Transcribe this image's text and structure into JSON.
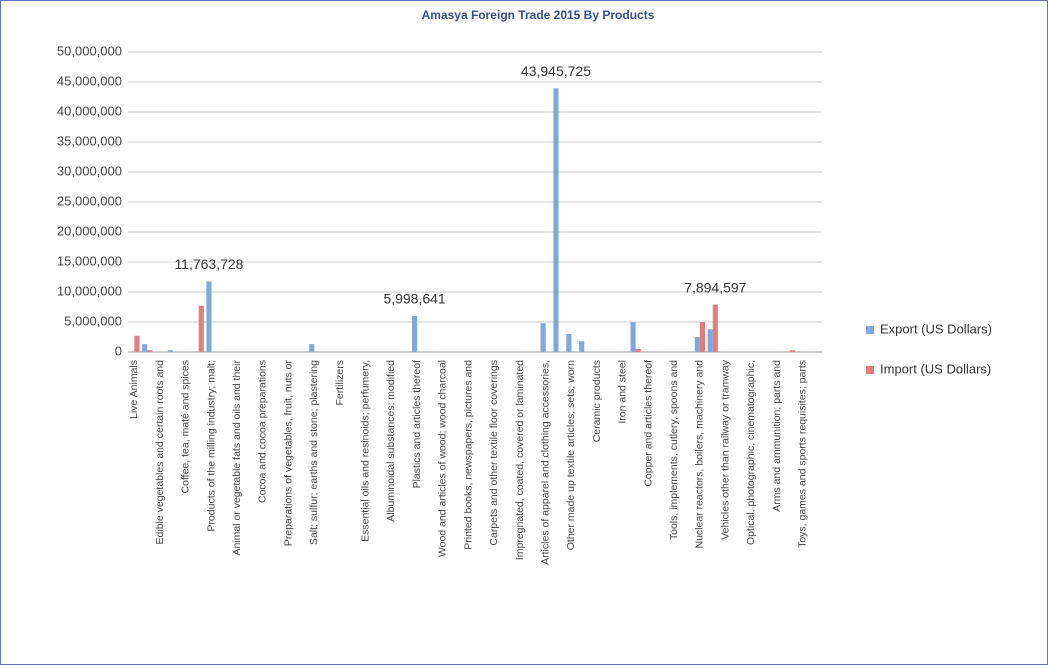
{
  "chart_data": {
    "type": "bar",
    "title": "Amasya Foreign Trade 2015 By Products",
    "categories": [
      "Live Animals",
      null,
      "Edible vegetables and certain roots and",
      null,
      "Coffee, tea, maté and spices",
      null,
      "Products of the milling industry; malt;",
      null,
      "Animal or vegetable fats and oils and their",
      null,
      "Cocoa and cocoa preparations",
      null,
      "Preparations of vegetables, fruit, nuts or",
      null,
      "Salt; sulfur; earths and stone; plastering",
      null,
      "Fertilizers",
      null,
      "Essential oils and resinoids; perfumery,",
      null,
      "Albuminoidal substances; modified",
      null,
      "Plastics and articles thereof",
      null,
      "Wood and articles of wood; wood charcoal",
      null,
      "Printed books, newspapers, pictures and",
      null,
      "Carpets and other textile floor coverings",
      null,
      "Impregnated, coated, covered or laminated",
      null,
      "Articles of apparel and clothing accessories,",
      null,
      "Other made up textile articles; sets; worn",
      null,
      "Ceramic products",
      null,
      "Iron and steel",
      null,
      "Copper and articles thereof",
      null,
      "Tools, implements, cutlery, spoons and",
      null,
      "Nuclear reactors, boilers, machinery and",
      null,
      "Vehicles other than railway or tramway",
      null,
      "Optical, photographic, cinematographic,",
      null,
      "Arms and ammunition; parts and",
      null,
      "Toys, games and sports requisites; parts",
      null
    ],
    "series": [
      {
        "name": "Export  (US Dollars)",
        "color": "#7fa9dc",
        "values": [
          0,
          1300000,
          0,
          300000,
          0,
          0,
          11763728,
          0,
          0,
          0,
          0,
          0,
          0,
          0,
          1300000,
          0,
          0,
          0,
          0,
          0,
          0,
          0,
          5998641,
          0,
          0,
          0,
          0,
          0,
          0,
          0,
          0,
          0,
          4800000,
          43945725,
          3000000,
          1800000,
          0,
          0,
          0,
          5000000,
          0,
          0,
          0,
          0,
          2500000,
          3800000,
          0,
          0,
          0,
          0,
          0,
          0,
          0,
          0
        ],
        "value_labels": [
          null,
          null,
          null,
          null,
          null,
          null,
          "11,763,728",
          null,
          null,
          null,
          null,
          null,
          null,
          null,
          null,
          null,
          null,
          null,
          null,
          null,
          null,
          null,
          "5,998,641",
          null,
          null,
          null,
          null,
          null,
          null,
          null,
          null,
          null,
          null,
          "43,945,725",
          null,
          null,
          null,
          null,
          null,
          null,
          null,
          null,
          null,
          null,
          null,
          null,
          null,
          null,
          null,
          null,
          null,
          null,
          null,
          null
        ]
      },
      {
        "name": "Import (US Dollars)",
        "color": "#e57e7a",
        "values": [
          2700000,
          300000,
          0,
          0,
          0,
          7700000,
          0,
          0,
          0,
          0,
          0,
          0,
          0,
          0,
          0,
          0,
          0,
          0,
          0,
          0,
          0,
          0,
          0,
          0,
          0,
          0,
          0,
          0,
          0,
          0,
          0,
          0,
          0,
          0,
          0,
          0,
          0,
          0,
          0,
          500000,
          0,
          0,
          0,
          0,
          5000000,
          7894597,
          0,
          0,
          0,
          0,
          0,
          300000,
          0,
          0
        ],
        "value_labels": [
          null,
          null,
          null,
          null,
          null,
          null,
          null,
          null,
          null,
          null,
          null,
          null,
          null,
          null,
          null,
          null,
          null,
          null,
          null,
          null,
          null,
          null,
          null,
          null,
          null,
          null,
          null,
          null,
          null,
          null,
          null,
          null,
          null,
          null,
          null,
          null,
          null,
          null,
          null,
          null,
          null,
          null,
          null,
          null,
          null,
          "7,894,597",
          null,
          null,
          null,
          null,
          null,
          null,
          null,
          null
        ]
      }
    ],
    "ylim": [
      0,
      50000000
    ],
    "yticks": [
      0,
      {
        "value": 5000000,
        "label": "5,000,000"
      },
      {
        "value": 10000000,
        "label": "10,000,000"
      },
      {
        "value": 15000000,
        "label": "15,000,000"
      },
      {
        "value": 20000000,
        "label": "20,000,000"
      },
      {
        "value": 25000000,
        "label": "25,000,000"
      },
      {
        "value": 30000000,
        "label": "30,000,000"
      },
      {
        "value": 35000000,
        "label": "35,000,000"
      },
      {
        "value": 40000000,
        "label": "40,000,000"
      },
      {
        "value": 45000000,
        "label": "45,000,000"
      },
      {
        "value": 50000000,
        "label": "50,000,000"
      }
    ],
    "grid": true,
    "legend": "right"
  }
}
